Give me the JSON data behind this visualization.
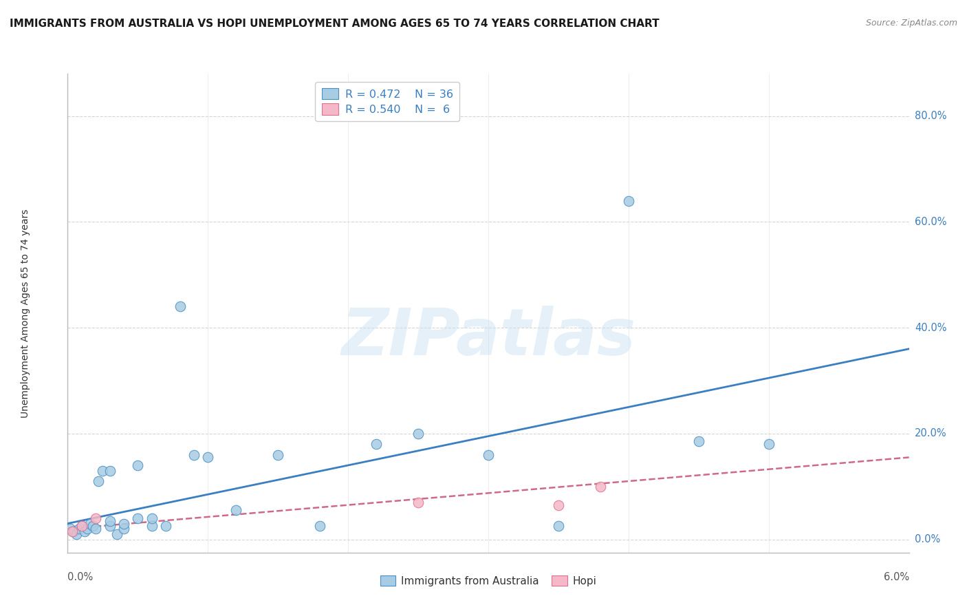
{
  "title": "IMMIGRANTS FROM AUSTRALIA VS HOPI UNEMPLOYMENT AMONG AGES 65 TO 74 YEARS CORRELATION CHART",
  "source": "Source: ZipAtlas.com",
  "ylabel": "Unemployment Among Ages 65 to 74 years",
  "ytick_vals": [
    0.0,
    0.2,
    0.4,
    0.6,
    0.8
  ],
  "ytick_labels": [
    "0.0%",
    "20.0%",
    "40.0%",
    "60.0%",
    "80.0%"
  ],
  "xmin": 0.0,
  "xmax": 0.06,
  "ymin": -0.025,
  "ymax": 0.88,
  "legend_r1": "R = 0.472",
  "legend_n1": "N = 36",
  "legend_r2": "R = 0.540",
  "legend_n2": "N =  6",
  "blue_fill": "#a8cce3",
  "pink_fill": "#f4b8c8",
  "blue_edge": "#4a90c4",
  "pink_edge": "#e07090",
  "blue_line": "#3a7fc1",
  "pink_line": "#d06888",
  "australia_points_x": [
    0.0002,
    0.0004,
    0.0006,
    0.0008,
    0.001,
    0.0012,
    0.0014,
    0.0016,
    0.0018,
    0.002,
    0.0022,
    0.0025,
    0.003,
    0.003,
    0.003,
    0.0035,
    0.004,
    0.004,
    0.005,
    0.005,
    0.006,
    0.006,
    0.007,
    0.008,
    0.009,
    0.01,
    0.012,
    0.015,
    0.018,
    0.022,
    0.025,
    0.03,
    0.035,
    0.04,
    0.045,
    0.05
  ],
  "australia_points_y": [
    0.02,
    0.015,
    0.01,
    0.02,
    0.025,
    0.015,
    0.02,
    0.03,
    0.025,
    0.02,
    0.11,
    0.13,
    0.025,
    0.035,
    0.13,
    0.01,
    0.02,
    0.03,
    0.04,
    0.14,
    0.025,
    0.04,
    0.025,
    0.44,
    0.16,
    0.155,
    0.055,
    0.16,
    0.025,
    0.18,
    0.2,
    0.16,
    0.025,
    0.64,
    0.185,
    0.18
  ],
  "hopi_points_x": [
    0.0003,
    0.001,
    0.002,
    0.025,
    0.035,
    0.038
  ],
  "hopi_points_y": [
    0.015,
    0.025,
    0.04,
    0.07,
    0.065,
    0.1
  ],
  "blue_trend_x": [
    0.0,
    0.06
  ],
  "blue_trend_y": [
    0.03,
    0.36
  ],
  "pink_trend_x": [
    0.0,
    0.06
  ],
  "pink_trend_y": [
    0.02,
    0.155
  ],
  "watermark": "ZIPatlas",
  "grid_color": "#d5d5d5",
  "spine_color": "#bbbbbb"
}
